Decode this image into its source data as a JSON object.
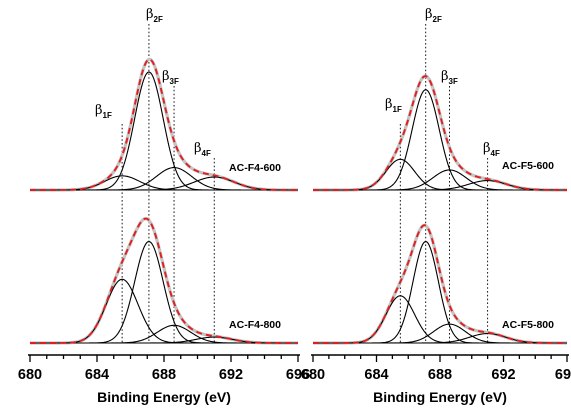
{
  "chart_data": [
    {
      "type": "line",
      "xlabel": "Binding Energy (eV)",
      "xlim": [
        680,
        696
      ],
      "xticks": [
        "680",
        "684",
        "688",
        "692",
        "696"
      ],
      "grid": false,
      "reference_lines_eV": [
        685.5,
        687.1,
        688.6,
        691.0
      ],
      "peak_labels": [
        {
          "symbol": "β",
          "sub": "1F"
        },
        {
          "symbol": "β",
          "sub": "2F"
        },
        {
          "symbol": "β",
          "sub": "3F"
        },
        {
          "symbol": "β",
          "sub": "4F"
        }
      ],
      "spectra": [
        {
          "name": "AC-F4-600",
          "components": [
            {
              "label": "β1F",
              "center": 685.5,
              "height": 0.12,
              "sigma": 1.05
            },
            {
              "label": "β2F",
              "center": 687.1,
              "height": 1.0,
              "sigma": 0.85
            },
            {
              "label": "β3F",
              "center": 688.6,
              "height": 0.19,
              "sigma": 1.05
            },
            {
              "label": "β4F",
              "center": 691.0,
              "height": 0.11,
              "sigma": 1.2
            }
          ]
        },
        {
          "name": "AC-F4-800",
          "components": [
            {
              "label": "β1F",
              "center": 685.5,
              "height": 0.54,
              "sigma": 0.95
            },
            {
              "label": "β2F",
              "center": 687.1,
              "height": 0.86,
              "sigma": 0.85
            },
            {
              "label": "β3F",
              "center": 688.6,
              "height": 0.15,
              "sigma": 1.0
            },
            {
              "label": "β4F",
              "center": 691.0,
              "height": 0.05,
              "sigma": 1.1
            }
          ]
        },
        {
          "name": "AC-F5-600",
          "components": [
            {
              "label": "β1F",
              "center": 685.5,
              "height": 0.26,
              "sigma": 0.9
            },
            {
              "label": "β2F",
              "center": 687.1,
              "height": 0.85,
              "sigma": 0.85
            },
            {
              "label": "β3F",
              "center": 688.6,
              "height": 0.17,
              "sigma": 1.05
            },
            {
              "label": "β4F",
              "center": 691.0,
              "height": 0.08,
              "sigma": 1.2
            }
          ]
        },
        {
          "name": "AC-F5-800",
          "components": [
            {
              "label": "β1F",
              "center": 685.5,
              "height": 0.4,
              "sigma": 0.9
            },
            {
              "label": "β2F",
              "center": 687.1,
              "height": 0.86,
              "sigma": 0.8
            },
            {
              "label": "β3F",
              "center": 688.6,
              "height": 0.16,
              "sigma": 1.0
            },
            {
              "label": "β4F",
              "center": 691.0,
              "height": 0.08,
              "sigma": 1.15
            }
          ]
        }
      ],
      "colors": {
        "components": "#000000",
        "envelope": "#c4c4c4",
        "fit_sum": "#e02020"
      }
    }
  ],
  "panels": [
    {
      "spectra": [
        "AC-F4-600",
        "AC-F4-800"
      ]
    },
    {
      "spectra": [
        "AC-F5-600",
        "AC-F5-800"
      ]
    }
  ]
}
